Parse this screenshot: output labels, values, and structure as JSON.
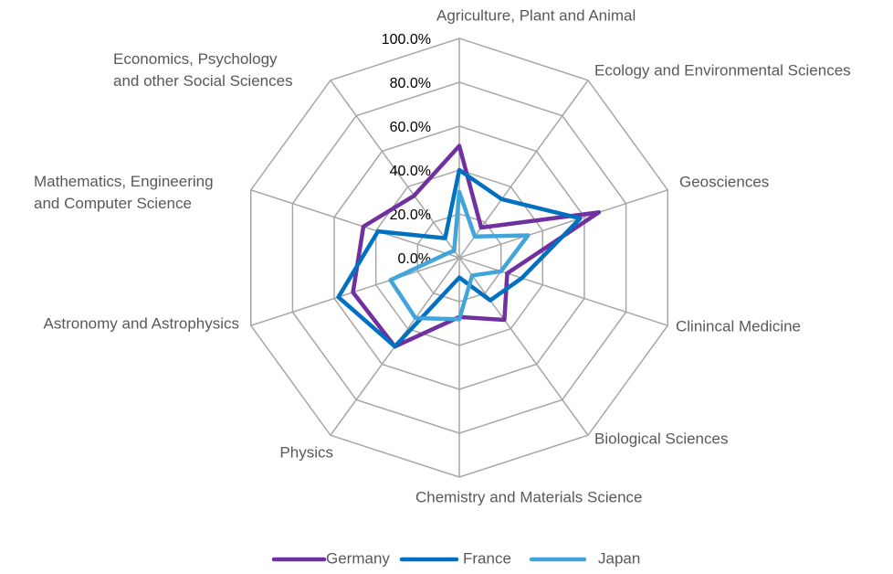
{
  "chart_data": {
    "type": "radar",
    "categories": [
      "Agriculture, Plant and Animal",
      "Ecology and Environmental Sciences",
      "Geosciences",
      "Clinincal Medicine",
      "Biological Sciences",
      "Chemistry and Materials Science",
      "Physics",
      "Astronomy and Astrophysics",
      "Mathematics, Engineering\nand Computer Science",
      "Economics, Psychology\nand other Social Sciences"
    ],
    "series": [
      {
        "name": "Germany",
        "color": "#7030a0",
        "values": [
          51,
          17,
          67,
          23,
          35,
          27,
          50,
          51,
          46,
          35
        ]
      },
      {
        "name": "France",
        "color": "#0070c0",
        "values": [
          40,
          33,
          58,
          30,
          24,
          9,
          50,
          58,
          39,
          11
        ]
      },
      {
        "name": "Japan",
        "color": "#41a5dc",
        "values": [
          30,
          12,
          33,
          20,
          10,
          28,
          34,
          33,
          6,
          4
        ]
      }
    ],
    "rlim": [
      0,
      100
    ],
    "rticks": [
      {
        "value": 0,
        "label": "0.0%"
      },
      {
        "value": 20,
        "label": "20.0%"
      },
      {
        "value": 40,
        "label": "40.0%"
      },
      {
        "value": 60,
        "label": "60.0%"
      },
      {
        "value": 80,
        "label": "80.0%"
      },
      {
        "value": 100,
        "label": "100.0%"
      }
    ],
    "grid": true,
    "legend": "bottom"
  }
}
